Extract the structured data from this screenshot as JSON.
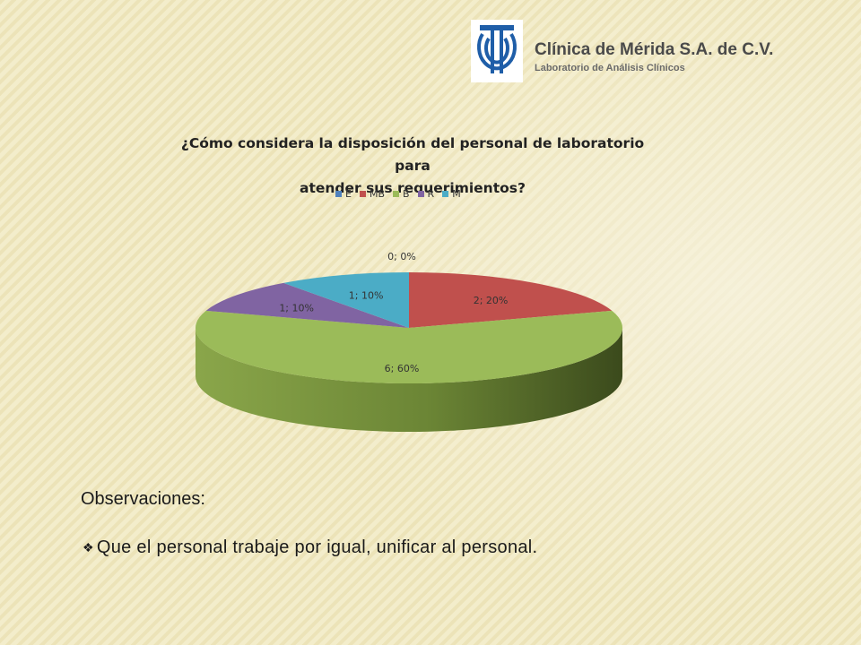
{
  "header": {
    "clinic_name": "Clínica de Mérida S.A. de C.V.",
    "clinic_subtitle": "Laboratorio de Análisis Clínicos"
  },
  "chart_data": {
    "type": "pie",
    "title_line1": "¿Cómo considera la disposición del personal de laboratorio para",
    "title_line2": "atender sus requerimientos?",
    "legend_position": "top",
    "categories": [
      "E",
      "MB",
      "B",
      "R",
      "M"
    ],
    "values": [
      0,
      2,
      6,
      1,
      1
    ],
    "percents": [
      "0%",
      "20%",
      "60%",
      "10%",
      "10%"
    ],
    "labels": [
      "0; 0%",
      "2; 20%",
      "6; 60%",
      "1; 10%",
      "1; 10%"
    ],
    "colors": [
      "#4f81bd",
      "#c0504d",
      "#9bbb59",
      "#8064a2",
      "#4bacc6"
    ],
    "style": "3d"
  },
  "observations": {
    "heading": "Observaciones:",
    "items": [
      "Que el personal trabaje por igual, unificar al personal."
    ]
  }
}
